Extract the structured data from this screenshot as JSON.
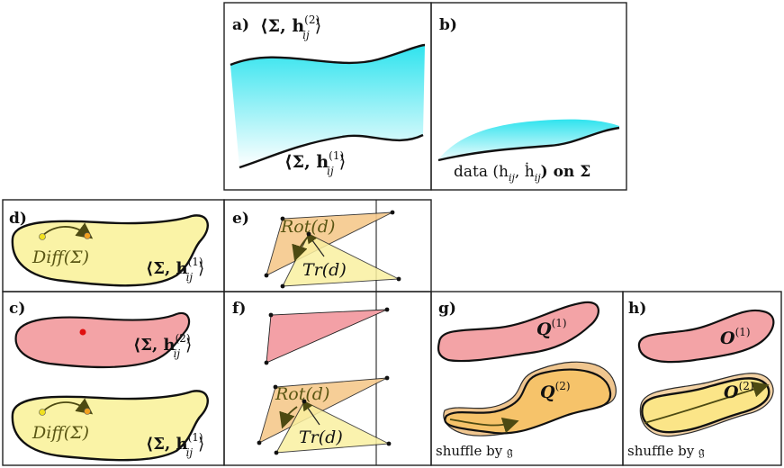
{
  "panels": {
    "a": {
      "letter": "a)",
      "top_label": "⟨Σ, h",
      "top_sup": "(2)",
      "top_sub": "ij",
      "top_close": "⟩",
      "bottom_label": "⟨Σ, h",
      "bottom_sup": "(1)",
      "bottom_sub": "ij",
      "bottom_close": "⟩"
    },
    "b": {
      "letter": "b)",
      "label": "data (h",
      "label_sub1": "ij",
      "label_mid": ", ḣ",
      "label_sub2": "ij",
      "label_end": ") on Σ"
    },
    "d": {
      "letter": "d)",
      "diff": "Diff(Σ)",
      "metric": "⟨Σ, h",
      "metric_sup": "(1)",
      "metric_sub": "ij",
      "metric_close": "⟩"
    },
    "e": {
      "letter": "e)",
      "rot": "Rot(d)",
      "tr": "Tr(d)"
    },
    "c": {
      "letter": "c)",
      "metric_top": "⟨Σ, h",
      "metric_top_sup": "(2)",
      "metric_top_sub": "ij",
      "metric_top_close": "⟩",
      "diff": "Diff(Σ)",
      "metric_bottom": "⟨Σ, h",
      "metric_bottom_sup": "(1)",
      "metric_bottom_sub": "ij",
      "metric_bottom_close": "⟩"
    },
    "f": {
      "letter": "f)",
      "rot": "Rot(d)",
      "tr": "Tr(d)"
    },
    "g": {
      "letter": "g)",
      "top": "Q",
      "top_sup": "(1)",
      "bottom": "Q",
      "bottom_sup": "(2)",
      "caption": "shuffle by 𝔤"
    },
    "h": {
      "letter": "h)",
      "top": "O",
      "top_sup": "(1)",
      "bottom": "O",
      "bottom_sup": "(2)",
      "caption": "shuffle by 𝔤"
    }
  },
  "colors": {
    "cyan_gradient_top": "#2fe3ee",
    "cyan_gradient_bottom": "#ffffff",
    "yellow_fill": "#faf3a6",
    "pink_fill": "#f3a3a6",
    "orange_fill": "#f6c36a",
    "olive_arrow": "#4d4a12",
    "red_dot": "#e01010",
    "yellow_dot": "#f0e020"
  }
}
